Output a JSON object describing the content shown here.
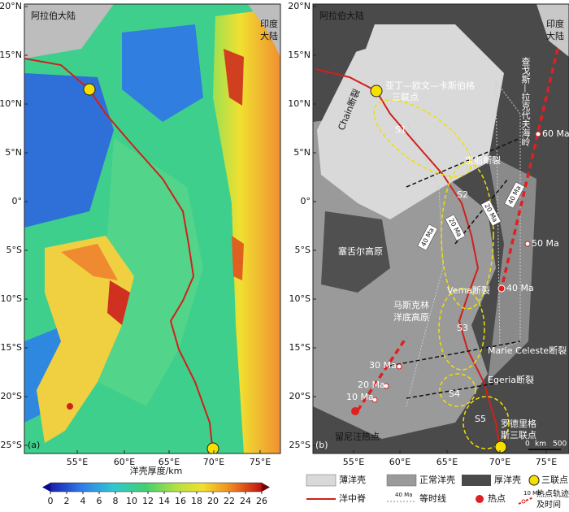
{
  "lat_labels": [
    "20°N",
    "15°N",
    "10°N",
    "5°N",
    "0°",
    "5°S",
    "10°S",
    "15°S",
    "20°S",
    "25°S"
  ],
  "lon_labels": [
    "55°E",
    "60°E",
    "65°E",
    "70°E",
    "75°E"
  ],
  "left": {
    "label": "(a)",
    "arabia": "阿拉伯大陆",
    "india": [
      "印度",
      "大陆"
    ]
  },
  "right": {
    "label": "(b)",
    "arabia": "阿拉伯大陆",
    "india": [
      "印度",
      "大陆"
    ],
    "triple_north": [
      "亚丁—欧文—卡斯伯格",
      "三联点"
    ],
    "chagos": "查戈斯—拉克代夫海岭",
    "chain": "Chain断裂",
    "baochuan": "宝船断裂",
    "vema": "Vema断裂",
    "marie": "Marie Celeste断裂",
    "egeria": "Egeria断裂",
    "seychelles": "塞舌尔高原",
    "mascarene": [
      "马斯克林",
      "洋底高原"
    ],
    "reunion": "留尼汪热点",
    "triple_south": [
      "罗德里格",
      "斯三联点"
    ],
    "segments": [
      "S1",
      "S2",
      "S3",
      "S4",
      "S5"
    ],
    "isochrons": [
      "40 Ma",
      "20 Ma",
      "20 Ma",
      "40 Ma"
    ],
    "hotspot_ages": [
      "60 Ma",
      "50 Ma",
      "40 Ma",
      "30 Ma",
      "20 Ma",
      "10 Ma"
    ],
    "scale": [
      "0",
      "km",
      "500"
    ]
  },
  "colorbar": {
    "title": "洋壳厚度/km",
    "range": [
      0,
      26
    ],
    "ticks": [
      0,
      2,
      4,
      6,
      8,
      10,
      12,
      14,
      16,
      18,
      20,
      22,
      24,
      26
    ]
  },
  "legend": {
    "thin": "薄洋壳",
    "normal": "正常洋壳",
    "thick": "厚洋壳",
    "triple": "三联点",
    "ridge": "洋中脊",
    "iso_sample": "40 Ma",
    "isochron": "等时线",
    "hotspot": "热点",
    "track_sample": "10 Ma",
    "track": [
      "热点轨迹",
      "及时间"
    ]
  }
}
